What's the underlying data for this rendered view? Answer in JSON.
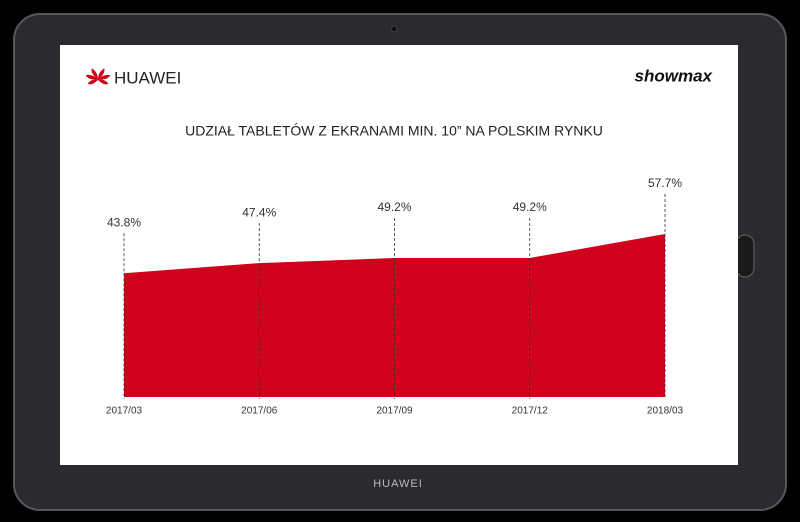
{
  "chart_data": {
    "type": "area",
    "title": "UDZIAŁ TABLETÓW Z EKRANAMI MIN. 10” NA POLSKIM RYNKU",
    "categories": [
      "2017/03",
      "2017/06",
      "2017/09",
      "2017/12",
      "2018/03"
    ],
    "values": [
      43.8,
      47.4,
      49.2,
      49.2,
      57.7
    ],
    "value_labels": [
      "43.8%",
      "47.4%",
      "49.2%",
      "49.2%",
      "57.7%"
    ],
    "color": "#d0021b",
    "ylim": [
      0,
      80
    ]
  },
  "screen": {
    "brand_left": "HUAWEI",
    "brand_right": "showmax"
  },
  "device": {
    "brand": "HUAWEI"
  }
}
